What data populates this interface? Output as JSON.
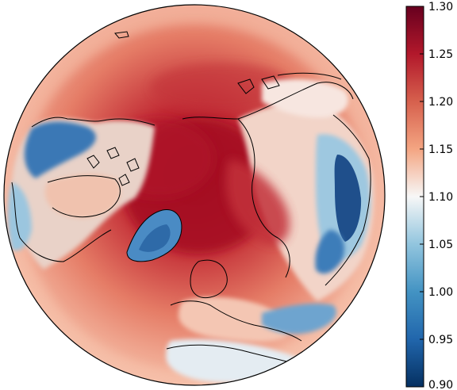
{
  "map": {
    "projection": "north-polar-stereographic",
    "variable_title": "",
    "coastlines": true,
    "colormap": "RdBu_r",
    "colors": {
      "ocean_high": "#b2182b",
      "ocean_mid": "#f4a582",
      "neutral": "#f7f7f7",
      "low": "#2166ac",
      "lowest": "#053061",
      "highest": "#67001f",
      "coast": "#000000"
    }
  },
  "colorbar": {
    "min": 0.9,
    "max": 1.3,
    "ticks": [
      "1.30",
      "1.25",
      "1.20",
      "1.15",
      "1.10",
      "1.05",
      "1.00",
      "0.95",
      "0.90"
    ]
  }
}
